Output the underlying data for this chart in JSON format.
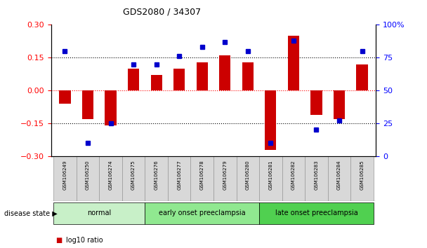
{
  "title": "GDS2080 / 34307",
  "samples": [
    "GSM106249",
    "GSM106250",
    "GSM106274",
    "GSM106275",
    "GSM106276",
    "GSM106277",
    "GSM106278",
    "GSM106279",
    "GSM106280",
    "GSM106281",
    "GSM106282",
    "GSM106283",
    "GSM106284",
    "GSM106285"
  ],
  "log10_ratio": [
    -0.06,
    -0.13,
    -0.16,
    0.1,
    0.07,
    0.1,
    0.13,
    0.16,
    0.13,
    -0.27,
    0.25,
    -0.11,
    -0.13,
    0.12
  ],
  "percentile_rank": [
    80,
    10,
    25,
    70,
    70,
    76,
    83,
    87,
    80,
    10,
    88,
    20,
    27,
    80
  ],
  "groups": [
    {
      "label": "normal",
      "start": 0,
      "end": 4,
      "color": "#c8f0c8"
    },
    {
      "label": "early onset preeclampsia",
      "start": 4,
      "end": 9,
      "color": "#90e890"
    },
    {
      "label": "late onset preeclampsia",
      "start": 9,
      "end": 14,
      "color": "#50d050"
    }
  ],
  "bar_color": "#cc0000",
  "dot_color": "#0000cc",
  "ylim_left": [
    -0.3,
    0.3
  ],
  "ylim_right": [
    0,
    100
  ],
  "yticks_left": [
    -0.3,
    -0.15,
    0,
    0.15,
    0.3
  ],
  "yticks_right": [
    0,
    25,
    50,
    75,
    100
  ],
  "bg_color": "#ffffff",
  "plot_bg": "#ffffff",
  "bar_width": 0.5,
  "dot_size": 4
}
